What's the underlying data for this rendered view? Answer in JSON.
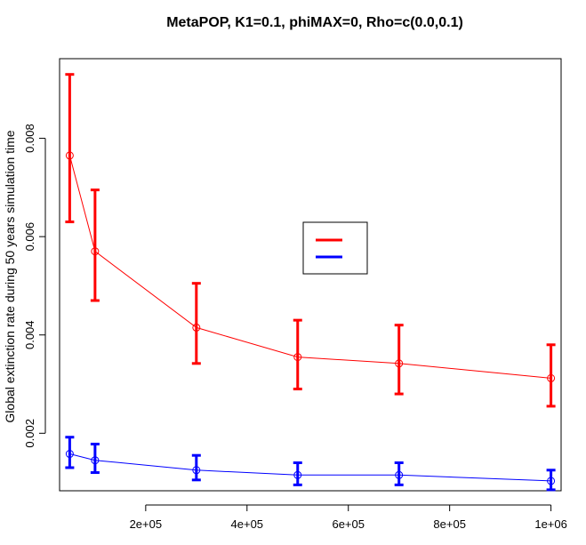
{
  "chart_data": {
    "type": "line",
    "title": "MetaPOP, K1=0.1, phiMAX=0, Rho=c(0.0,0.1)",
    "xlabel": "",
    "ylabel": "Global extinction rate during 50 years simulation time",
    "xlim": [
      30000,
      1020000
    ],
    "ylim": [
      0.00083,
      0.00962
    ],
    "x": [
      50000,
      100000,
      300000,
      500000,
      700000,
      1000000
    ],
    "x_ticks": [
      200000,
      400000,
      600000,
      800000,
      1000000
    ],
    "x_tick_labels": [
      "2e+05",
      "4e+05",
      "6e+05",
      "8e+05",
      "1e+06"
    ],
    "y_ticks": [
      0.002,
      0.004,
      0.006,
      0.008
    ],
    "y_tick_labels": [
      "0.002",
      "0.004",
      "0.006",
      "0.008"
    ],
    "grid": false,
    "legend": "center-right",
    "series": [
      {
        "color": "#ff0000",
        "values": [
          0.00765,
          0.0057,
          0.00415,
          0.00355,
          0.00342,
          0.00312
        ],
        "lower": [
          0.0063,
          0.0047,
          0.00342,
          0.0029,
          0.0028,
          0.00255
        ],
        "upper": [
          0.0093,
          0.00695,
          0.00505,
          0.0043,
          0.0042,
          0.0038
        ]
      },
      {
        "color": "#0000ff",
        "values": [
          0.00158,
          0.00145,
          0.00125,
          0.00115,
          0.00115,
          0.00103
        ],
        "lower": [
          0.0013,
          0.0012,
          0.00105,
          0.00095,
          0.00095,
          0.00085
        ],
        "upper": [
          0.00192,
          0.00178,
          0.00155,
          0.0014,
          0.0014,
          0.00125
        ]
      }
    ]
  }
}
